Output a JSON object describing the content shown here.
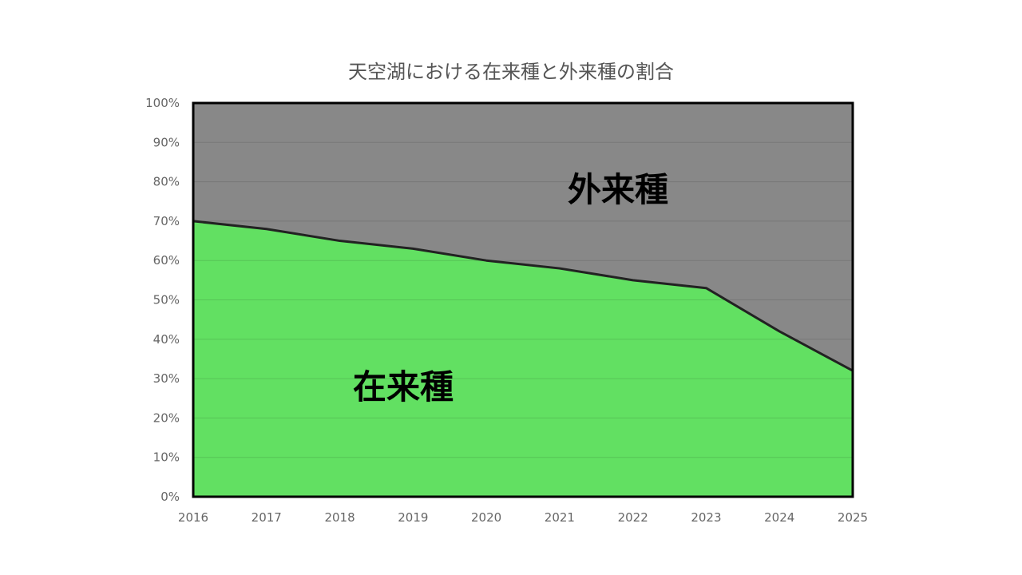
{
  "chart_data": {
    "type": "area",
    "title": "天空湖における在来種と外来種の割合",
    "x": [
      "2016",
      "2017",
      "2018",
      "2019",
      "2020",
      "2021",
      "2022",
      "2023",
      "2024",
      "2025"
    ],
    "series": [
      {
        "name": "在来種",
        "values": [
          70,
          68,
          65,
          63,
          60,
          58,
          55,
          53,
          42,
          32
        ],
        "color": "#62e062"
      },
      {
        "name": "外来種",
        "values": [
          30,
          32,
          35,
          37,
          40,
          42,
          45,
          47,
          58,
          68
        ],
        "color": "#888888"
      }
    ],
    "ylim": [
      0,
      100
    ],
    "ytick_labels": [
      "0%",
      "10%",
      "20%",
      "30%",
      "40%",
      "50%",
      "60%",
      "70%",
      "80%",
      "90%",
      "100%"
    ],
    "stacked": true,
    "grid": true,
    "legend": "none",
    "line_color": "#222222"
  }
}
